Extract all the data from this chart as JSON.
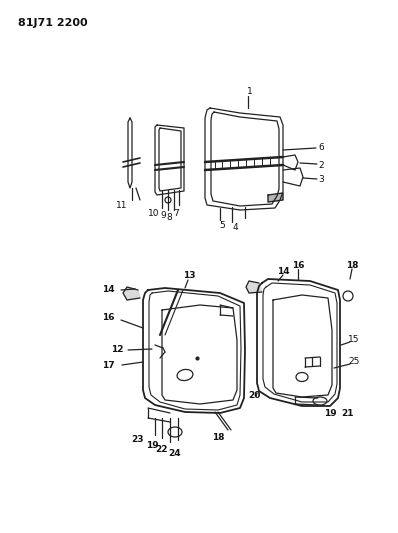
{
  "title": "81J71 2200",
  "bg_color": "#ffffff",
  "fig_width": 3.98,
  "fig_height": 5.33,
  "dpi": 100,
  "lc": "#222222",
  "tc": "#111111"
}
